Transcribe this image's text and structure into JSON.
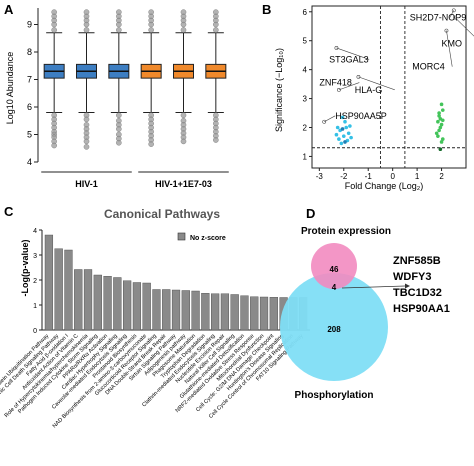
{
  "figure": {
    "panel_a": {
      "letter": "A",
      "chart_data": {
        "type": "box",
        "ylabel": "Log10 Abundance",
        "ylim": [
          4,
          9.6
        ],
        "yticks": [
          4,
          5,
          6,
          7,
          8,
          9
        ],
        "grid": false,
        "boxes": [
          {
            "group": "HIV-1",
            "median": 7.3,
            "q1": 7.05,
            "q3": 7.55,
            "whisker_low": 5.8,
            "whisker_high": 8.7,
            "color": "#3d7ec2",
            "outliers_low": [
              5.7,
              5.55,
              5.4,
              5.25,
              5.1,
              5.0,
              4.9,
              4.75,
              4.6
            ],
            "outliers_high": [
              8.8,
              9.0,
              9.15,
              9.3,
              9.45
            ]
          },
          {
            "group": "HIV-1",
            "median": 7.3,
            "q1": 7.05,
            "q3": 7.55,
            "whisker_low": 5.8,
            "whisker_high": 8.7,
            "color": "#3d7ec2",
            "outliers_low": [
              5.7,
              5.55,
              5.35,
              5.2,
              5.05,
              4.9,
              4.75,
              4.55
            ],
            "outliers_high": [
              8.8,
              9.0,
              9.15,
              9.3,
              9.45
            ]
          },
          {
            "group": "HIV-1",
            "median": 7.3,
            "q1": 7.05,
            "q3": 7.55,
            "whisker_low": 5.8,
            "whisker_high": 8.7,
            "color": "#3d7ec2",
            "outliers_low": [
              5.7,
              5.5,
              5.35,
              5.2,
              5.0,
              4.85,
              4.7
            ],
            "outliers_high": [
              8.8,
              9.0,
              9.15,
              9.3,
              9.45
            ]
          },
          {
            "group": "HIV-1+1E7-03",
            "median": 7.3,
            "q1": 7.05,
            "q3": 7.55,
            "whisker_low": 5.8,
            "whisker_high": 8.7,
            "color": "#f0892b",
            "outliers_low": [
              5.7,
              5.55,
              5.4,
              5.25,
              5.1,
              4.95,
              4.8,
              4.65
            ],
            "outliers_high": [
              8.8,
              9.0,
              9.15,
              9.3,
              9.45
            ]
          },
          {
            "group": "HIV-1+1E7-03",
            "median": 7.3,
            "q1": 7.05,
            "q3": 7.55,
            "whisker_low": 5.8,
            "whisker_high": 8.7,
            "color": "#f0892b",
            "outliers_low": [
              5.7,
              5.5,
              5.35,
              5.2,
              5.05,
              4.9,
              4.75
            ],
            "outliers_high": [
              8.8,
              9.0,
              9.15,
              9.3,
              9.45
            ]
          },
          {
            "group": "HIV-1+1E7-03",
            "median": 7.3,
            "q1": 7.05,
            "q3": 7.55,
            "whisker_low": 5.8,
            "whisker_high": 8.7,
            "color": "#f0892b",
            "outliers_low": [
              5.7,
              5.55,
              5.4,
              5.25,
              5.1,
              4.95,
              4.8
            ],
            "outliers_high": [
              8.8,
              9.0,
              9.15,
              9.3,
              9.45
            ]
          }
        ],
        "outlier_color": "#9a9a9a",
        "group_labels": [
          "HIV-1",
          "HIV-1+1E7-03"
        ]
      }
    },
    "panel_b": {
      "letter": "B",
      "chart_data": {
        "type": "scatter",
        "xlabel": "Fold Change (Log₂)",
        "ylabel": "Significance (−Log₁₀)",
        "xlim": [
          -3.3,
          3.0
        ],
        "ylim": [
          0.6,
          6.2
        ],
        "xticks": [
          -3,
          -2,
          -1,
          0,
          1,
          2
        ],
        "yticks": [
          1,
          2,
          3,
          4,
          5,
          6
        ],
        "threshold_x": [
          -0.5,
          0.5
        ],
        "threshold_y": 1.3,
        "labels": [
          {
            "text": "SH2D7-NOP9",
            "x": 0.7,
            "y": 5.7,
            "px": 2.5,
            "py": 6.05
          },
          {
            "text": "KMO",
            "x": 2.0,
            "y": 4.8,
            "px": 2.55,
            "py": 5.8
          },
          {
            "text": "MORC4",
            "x": 0.8,
            "y": 4.0,
            "px": 2.2,
            "py": 5.35
          },
          {
            "text": "ST3GAL3",
            "x": -2.6,
            "y": 4.25,
            "px": -2.3,
            "py": 4.75
          },
          {
            "text": "ZNF418",
            "x": -3.0,
            "y": 3.45,
            "px": -2.2,
            "py": 3.3
          },
          {
            "text": "HLA-G",
            "x": -1.55,
            "y": 3.2,
            "px": -1.4,
            "py": 3.75
          },
          {
            "text": "HSP90AA5P",
            "x": -2.35,
            "y": 2.3,
            "px": -2.8,
            "py": 2.2
          }
        ],
        "series": [
          {
            "color": "#34c0e6",
            "points": [
              [
                -2.0,
                1.7
              ],
              [
                -2.15,
                1.9
              ],
              [
                -1.9,
                2.0
              ],
              [
                -2.2,
                1.6
              ],
              [
                -1.8,
                1.8
              ],
              [
                -1.95,
                2.2
              ],
              [
                -2.25,
                2.0
              ],
              [
                -1.85,
                1.55
              ],
              [
                -2.05,
                2.35
              ],
              [
                -2.1,
                1.45
              ],
              [
                -1.75,
                2.05
              ],
              [
                -2.3,
                1.75
              ],
              [
                -1.7,
                1.65
              ]
            ]
          },
          {
            "color": "#1f7fb5",
            "points": [
              [
                -1.95,
                1.5
              ],
              [
                -2.05,
                1.95
              ]
            ]
          },
          {
            "color": "#43c45a",
            "points": [
              [
                1.9,
                2.5
              ],
              [
                1.95,
                2.3
              ],
              [
                2.0,
                2.1
              ],
              [
                1.85,
                2.2
              ],
              [
                2.05,
                2.6
              ],
              [
                1.9,
                1.9
              ],
              [
                2.0,
                2.8
              ],
              [
                1.95,
                2.0
              ],
              [
                1.8,
                1.8
              ],
              [
                2.05,
                1.6
              ],
              [
                1.9,
                2.4
              ],
              [
                2.0,
                1.5
              ],
              [
                1.85,
                1.7
              ],
              [
                2.05,
                2.25
              ]
            ]
          },
          {
            "color": "#176b2c",
            "points": [
              [
                1.95,
                1.25
              ]
            ]
          }
        ]
      }
    },
    "panel_c": {
      "letter": "C",
      "chart_data": {
        "type": "bar",
        "title": "Canonical Pathways",
        "ylabel": "-Log(p-value)",
        "ylim": [
          0,
          4
        ],
        "yticks": [
          0,
          1,
          2,
          3,
          4
        ],
        "legend": "No z-score",
        "legend_placement": "top-right",
        "bar_color": "#8a8a8a",
        "categories": [
          "Protein Ubiquitination Pathway",
          "Immunogenic Cell Death Signaling Pathway",
          "Fatty Acid β-oxidation I",
          "Antioxidant Action of Vitamin C",
          "Role of Hypercytokinemia/hyperchemokinemia",
          "Pathogen Induced Cytokine Storm Signaling",
          "PPARα/RXRα Activation",
          "Cardiac Hypertrophy Signaling",
          "Caveolar-mediated Endocytosis Signaling",
          "Prostanoid Biosynthesis",
          "NAD Biosynthesis from 2-amino-3-carboxymuconate",
          "Glucocorticoid Receptor Signaling",
          "DNA Double-Strand Break Repair",
          "Sirtuin Signaling Pathway",
          "Adipogenesis pathway",
          "Phagosome Maturation",
          "Tryptophan Degradation",
          "Clathrin-mediated Endocytosis Signaling",
          "Nucleotide Excision Repair",
          "Natural Killer Cell Signaling",
          "Glutathione-mediated Detoxification",
          "NRF2-mediated Oxidative Stress Response",
          "Mitochondrial Dysfunction",
          "Cell Cycle: G2/M DNA Damage Checkpoint",
          "Huntington's Disease Signaling",
          "Cell Cycle Control of Chromosomal Replication",
          "FAT10 Signaling Pathway"
        ],
        "values": [
          3.8,
          3.25,
          3.2,
          2.42,
          2.42,
          2.2,
          2.15,
          2.1,
          1.97,
          1.9,
          1.88,
          1.62,
          1.62,
          1.6,
          1.58,
          1.56,
          1.47,
          1.45,
          1.45,
          1.42,
          1.37,
          1.33,
          1.32,
          1.31,
          1.3,
          1.3,
          1.3
        ]
      }
    },
    "panel_d": {
      "letter": "D",
      "top_label": "Protein expression",
      "bottom_label": "Phosphorylation",
      "protein_only": "46",
      "overlap": "4",
      "phospho_only": "208",
      "protein_color": "#f28bc0",
      "phospho_color": "#7fdef5",
      "genes": [
        "ZNF585B",
        "WDFY3",
        "TBC1D32",
        "HSP90AA1"
      ]
    }
  }
}
